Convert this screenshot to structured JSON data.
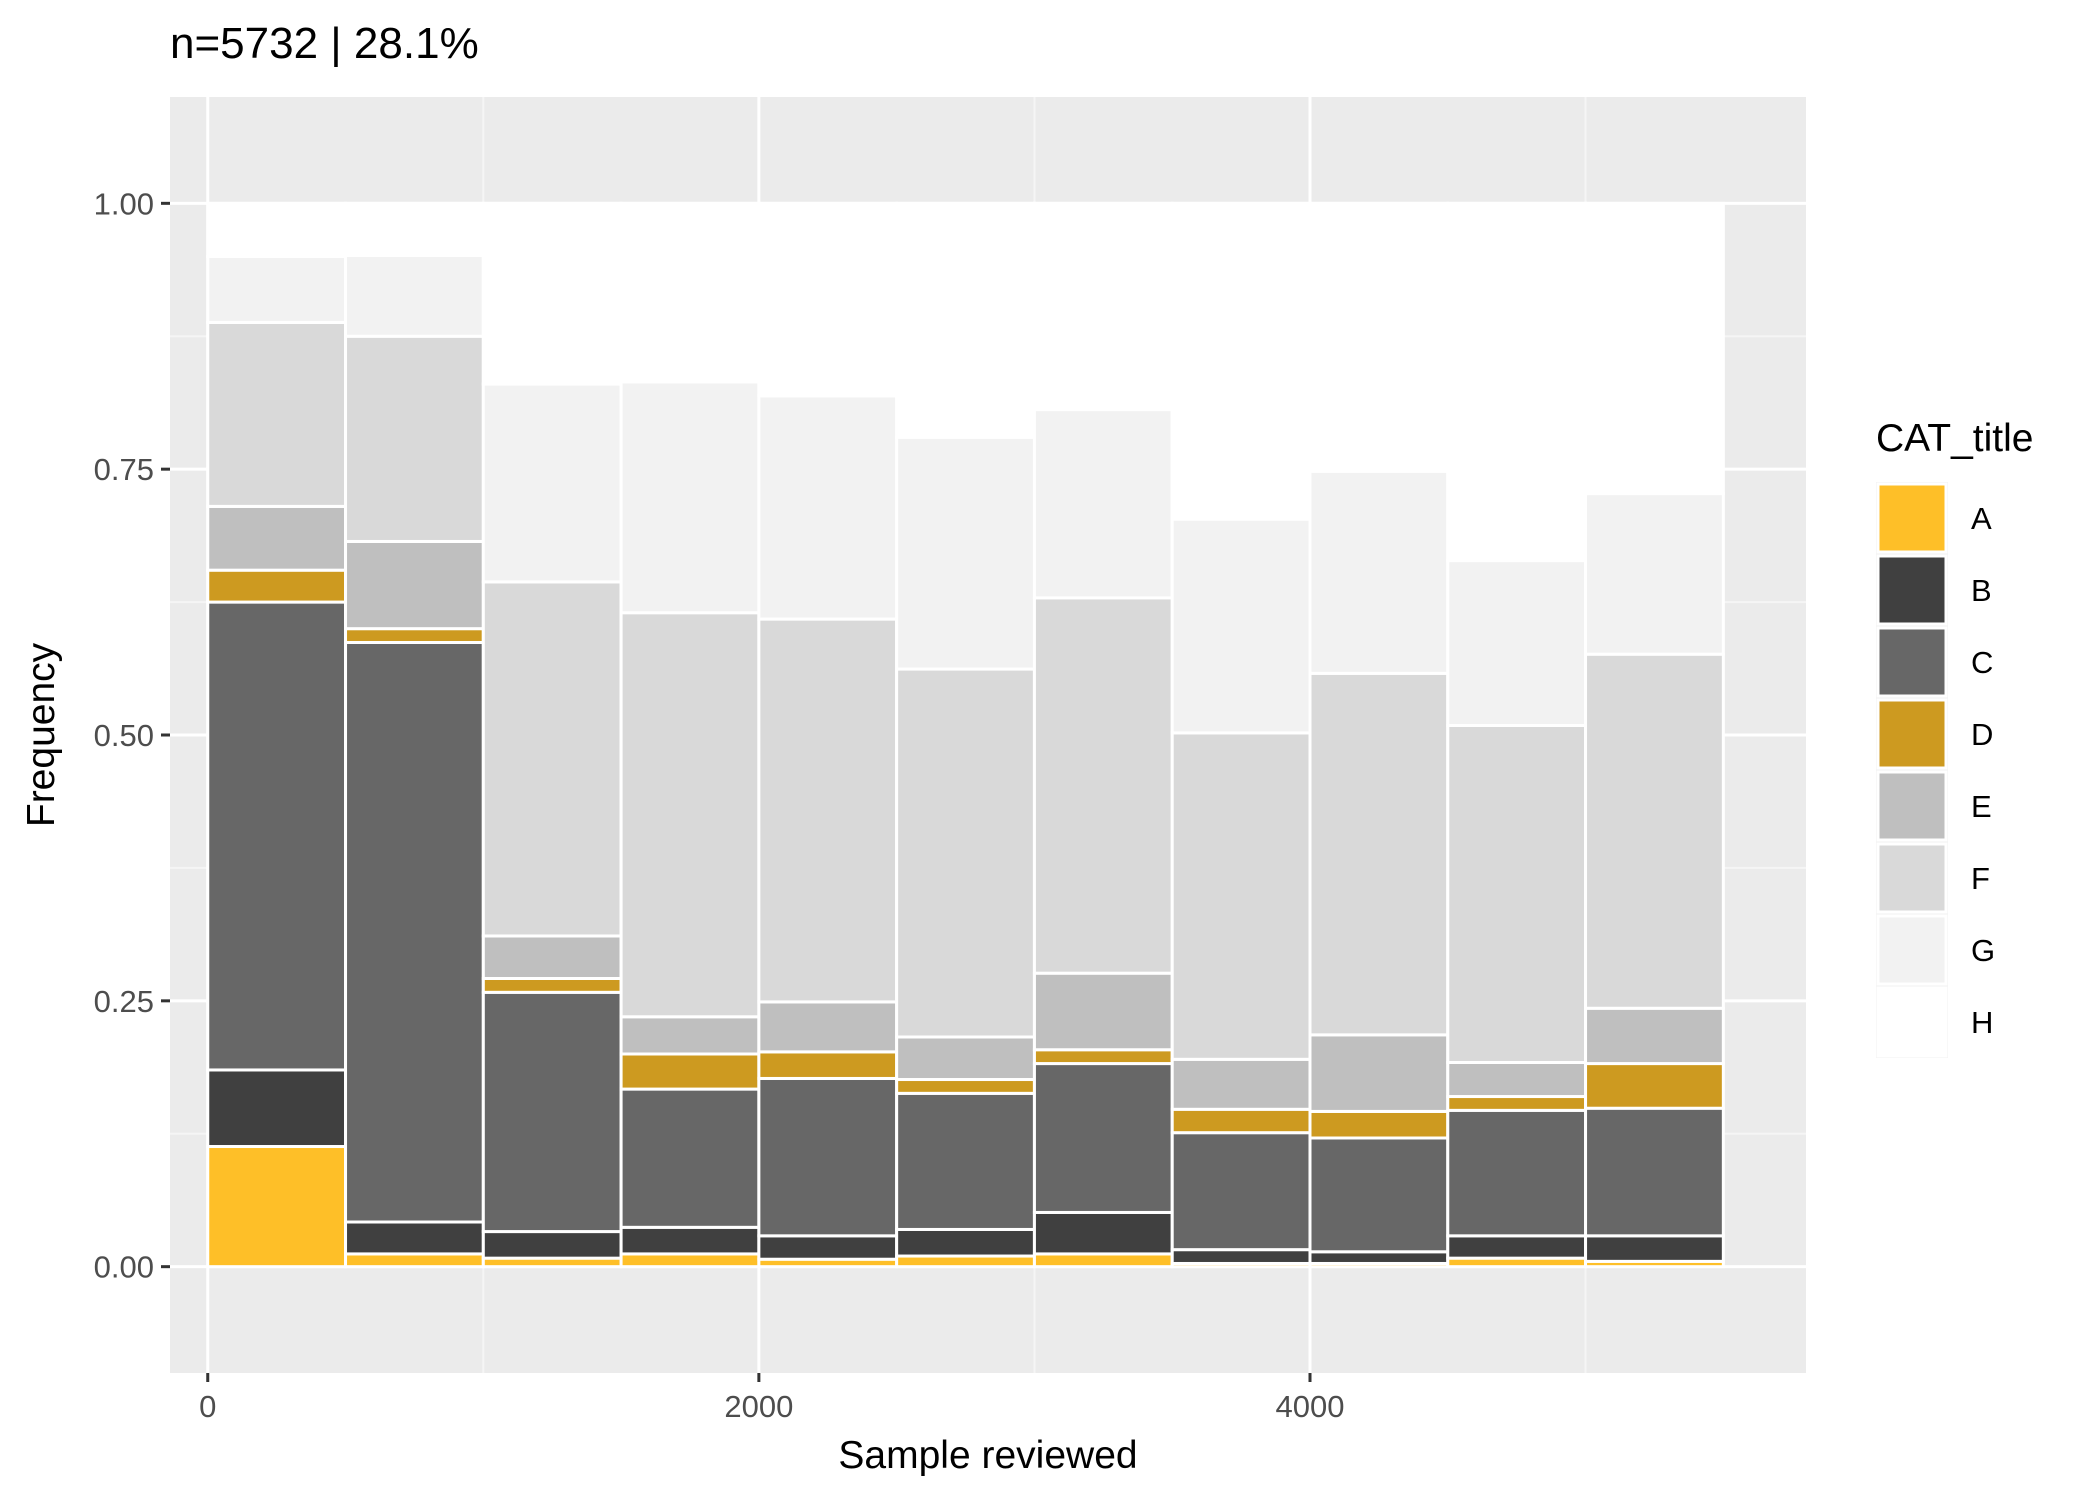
{
  "chart_data": {
    "type": "bar",
    "stacked": true,
    "title": "n=5732 | 28.1%",
    "xlabel": "Sample reviewed",
    "ylabel": "Frequency",
    "xlim": [
      -137,
      5800
    ],
    "ylim": [
      -0.1,
      1.1
    ],
    "x_ticks": [
      0,
      2000,
      4000
    ],
    "x_tick_labels": [
      "0",
      "2000",
      "4000"
    ],
    "y_ticks": [
      0,
      0.25,
      0.5,
      0.75,
      1.0
    ],
    "y_tick_labels": [
      "0.00",
      "0.25",
      "0.50",
      "0.75",
      "1.00"
    ],
    "bin_width": 500,
    "bin_starts": [
      0,
      500,
      1000,
      1500,
      2000,
      2500,
      3000,
      3500,
      4000,
      4500,
      5000
    ],
    "grid": true,
    "legend": {
      "title": "CAT_title",
      "position": "right"
    },
    "series": [
      {
        "name": "A",
        "color": "#FEBF28",
        "values": [
          0.113,
          0.012,
          0.008,
          0.012,
          0.007,
          0.01,
          0.012,
          0.003,
          0.003,
          0.008,
          0.005
        ]
      },
      {
        "name": "B",
        "color": "#404040",
        "values": [
          0.072,
          0.03,
          0.025,
          0.025,
          0.022,
          0.025,
          0.039,
          0.013,
          0.011,
          0.021,
          0.024
        ]
      },
      {
        "name": "C",
        "color": "#676767",
        "values": [
          0.44,
          0.545,
          0.225,
          0.13,
          0.148,
          0.128,
          0.14,
          0.11,
          0.107,
          0.118,
          0.12
        ]
      },
      {
        "name": "D",
        "color": "#CD9A20",
        "values": [
          0.03,
          0.013,
          0.013,
          0.033,
          0.025,
          0.013,
          0.013,
          0.022,
          0.025,
          0.013,
          0.042
        ]
      },
      {
        "name": "E",
        "color": "#BFBFBF",
        "values": [
          0.06,
          0.082,
          0.04,
          0.035,
          0.047,
          0.04,
          0.072,
          0.047,
          0.072,
          0.032,
          0.052
        ]
      },
      {
        "name": "F",
        "color": "#D9D9D9",
        "values": [
          0.173,
          0.193,
          0.333,
          0.38,
          0.36,
          0.346,
          0.353,
          0.307,
          0.34,
          0.317,
          0.333
        ]
      },
      {
        "name": "G",
        "color": "#F2F2F2",
        "values": [
          0.062,
          0.076,
          0.186,
          0.217,
          0.21,
          0.218,
          0.177,
          0.201,
          0.19,
          0.155,
          0.151
        ]
      },
      {
        "name": "H",
        "color": "#FFFFFF",
        "values": [
          0.05,
          0.049,
          0.17,
          0.168,
          0.181,
          0.22,
          0.194,
          0.297,
          0.252,
          0.336,
          0.273
        ]
      }
    ],
    "colors": {
      "panel": "#EBEBEB",
      "grid_major": "#FFFFFF",
      "grid_minor": "#F5F5F5",
      "bar_border": "#FFFFFF",
      "text": "#000000",
      "tick_text": "#4D4D4D",
      "tick_mark": "#333333"
    }
  }
}
